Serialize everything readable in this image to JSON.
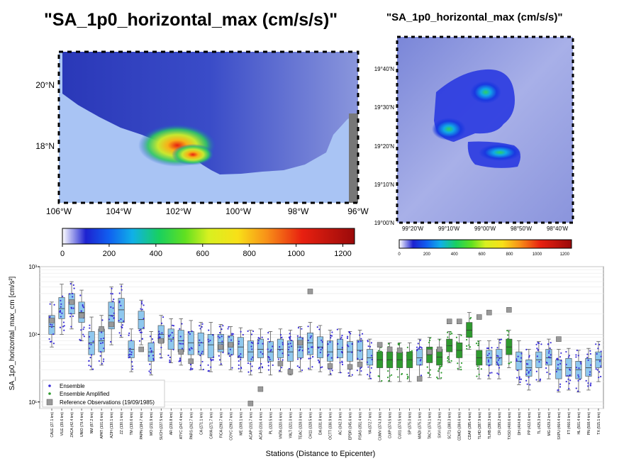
{
  "left_map": {
    "title": "\"SA_1p0_horizontal_max (cm/s/s)\"",
    "lat_labels": [
      "20°N",
      "18°N"
    ],
    "lon_labels": [
      "106°W",
      "104°W",
      "102°W",
      "100°W",
      "98°W",
      "96°W"
    ],
    "colorbar_ticks": [
      "0",
      "200",
      "400",
      "600",
      "800",
      "1000",
      "1200"
    ],
    "colorbar_range": [
      0,
      1250
    ]
  },
  "right_map": {
    "title": "\"SA_1p0_horizontal_max (cm/s/s)\"",
    "lat_labels": [
      "19°40'N",
      "19°30'N",
      "19°20'N",
      "19°10'N",
      "19°00'N"
    ],
    "lon_labels": [
      "99°20'W",
      "99°10'W",
      "99°00'W",
      "98°50'W",
      "98°40'W"
    ],
    "colorbar_ticks": [
      "0",
      "200",
      "400",
      "600",
      "800",
      "1000",
      "1200"
    ],
    "colorbar_range": [
      0,
      1250
    ]
  },
  "colors": {
    "ensemble": "#3b2fd6",
    "ensemble_amplified": "#2e9a2e",
    "box_blue": "#8fc8ee",
    "box_green": "#2f9a2f",
    "reference": "#999999",
    "ocean": "#a9c4f4"
  },
  "chart_data": {
    "type": "box",
    "ylabel": "SA_1p0_horizontal_max_cm [cm/s²]",
    "xlabel": "Stations (Distance to Epicenter)",
    "yscale": "log",
    "ylim": [
      8,
      1000
    ],
    "y_tick_labels": [
      "10¹",
      "10²",
      "10³"
    ],
    "grid": true,
    "legend_position": "lower-left",
    "legend": [
      "Ensemble",
      "Ensemble Amplified",
      "Reference Observations (19/09/1985)"
    ],
    "stations": [
      {
        "label": "CALE (27.1 km)",
        "group": "ensemble",
        "q1": 100,
        "median": 130,
        "q3": 190,
        "wlo": 65,
        "whi": 300,
        "ref": 160
      },
      {
        "label": "VILE (39.6 km)",
        "group": "ensemble",
        "q1": 170,
        "median": 240,
        "q3": 350,
        "wlo": 100,
        "whi": 550,
        "ref": null
      },
      {
        "label": "ZACA (42.4 km)",
        "group": "ensemble",
        "q1": 200,
        "median": 290,
        "q3": 400,
        "wlo": 120,
        "whi": 600,
        "ref": 300
      },
      {
        "label": "UNIO (79.4 km)",
        "group": "ensemble",
        "q1": 150,
        "median": 210,
        "q3": 300,
        "wlo": 80,
        "whi": 450,
        "ref": 190
      },
      {
        "label": "NM (87.2 km)",
        "group": "ensemble",
        "q1": 50,
        "median": 75,
        "q3": 110,
        "wlo": 30,
        "whi": 180,
        "ref": null
      },
      {
        "label": "APAT (101.6 km)",
        "group": "ensemble",
        "q1": 55,
        "median": 80,
        "q3": 120,
        "wlo": 35,
        "whi": 190,
        "ref": 120
      },
      {
        "label": "AZIH (130.1 km)",
        "group": "ensemble",
        "q1": 120,
        "median": 190,
        "q3": 300,
        "wlo": 70,
        "whi": 500,
        "ref": 140
      },
      {
        "label": "ZZ (130.1 km)",
        "group": "ensemble",
        "q1": 150,
        "median": 230,
        "q3": 340,
        "wlo": 90,
        "whi": 550,
        "ref": null
      },
      {
        "label": "TM (130.6 km)",
        "group": "ensemble",
        "q1": 45,
        "median": 60,
        "q3": 80,
        "wlo": 28,
        "whi": 120,
        "ref": null
      },
      {
        "label": "PAPN (184.7 km)",
        "group": "ensemble",
        "q1": 120,
        "median": 165,
        "q3": 220,
        "wlo": 70,
        "whi": 320,
        "ref": 60
      },
      {
        "label": "MO (211.9 km)",
        "group": "ensemble",
        "q1": 40,
        "median": 55,
        "q3": 75,
        "wlo": 25,
        "whi": 110,
        "ref": null
      },
      {
        "label": "SUCH (227.5 km)",
        "group": "ensemble",
        "q1": 75,
        "median": 100,
        "q3": 135,
        "wlo": 45,
        "whi": 190,
        "ref": 80
      },
      {
        "label": "AR (230.8 km)",
        "group": "ensemble",
        "q1": 60,
        "median": 85,
        "q3": 120,
        "wlo": 38,
        "whi": 170,
        "ref": null
      },
      {
        "label": "ATYC (247.4 km)",
        "group": "ensemble",
        "q1": 55,
        "median": 80,
        "q3": 115,
        "wlo": 35,
        "whi": 170,
        "ref": 55
      },
      {
        "label": "PARS (262.7 km)",
        "group": "ensemble",
        "q1": 50,
        "median": 75,
        "q3": 110,
        "wlo": 30,
        "whi": 160,
        "ref": 40
      },
      {
        "label": "CA (271.1 km)",
        "group": "ensemble",
        "q1": 50,
        "median": 75,
        "q3": 105,
        "wlo": 30,
        "whi": 150,
        "ref": null
      },
      {
        "label": "CAYA (271.7 km)",
        "group": "ensemble",
        "q1": 45,
        "median": 70,
        "q3": 100,
        "wlo": 28,
        "whi": 150,
        "ref": null
      },
      {
        "label": "FICA (290.7 km)",
        "group": "ensemble",
        "q1": 55,
        "median": 75,
        "q3": 100,
        "wlo": 35,
        "whi": 140,
        "ref": 65
      },
      {
        "label": "COYC (290.7 km)",
        "group": "ensemble",
        "q1": 50,
        "median": 70,
        "q3": 95,
        "wlo": 30,
        "whi": 130,
        "ref": 70
      },
      {
        "label": "ME (309.1 km)",
        "group": "ensemble",
        "q1": 45,
        "median": 65,
        "q3": 90,
        "wlo": 28,
        "whi": 125,
        "ref": null
      },
      {
        "label": "ACAP (315.7 km)",
        "group": "ensemble",
        "q1": 40,
        "median": 55,
        "q3": 80,
        "wlo": 25,
        "whi": 115,
        "ref": 9.5
      },
      {
        "label": "ACAS (316.4 km)",
        "group": "ensemble",
        "q1": 45,
        "median": 60,
        "q3": 85,
        "wlo": 27,
        "whi": 120,
        "ref": 15.5
      },
      {
        "label": "PL (320.5 km)",
        "group": "ensemble",
        "q1": 40,
        "median": 55,
        "q3": 78,
        "wlo": 25,
        "whi": 110,
        "ref": null
      },
      {
        "label": "VNTA (320.6 km)",
        "group": "ensemble",
        "q1": 45,
        "median": 60,
        "q3": 85,
        "wlo": 28,
        "whi": 120,
        "ref": 37
      },
      {
        "label": "YALT (321.0 km)",
        "group": "ensemble",
        "q1": 40,
        "median": 55,
        "q3": 80,
        "wlo": 25,
        "whi": 115,
        "ref": 28
      },
      {
        "label": "TEAC (328.0 km)",
        "group": "ensemble",
        "q1": 45,
        "median": 65,
        "q3": 90,
        "wlo": 28,
        "whi": 130,
        "ref": 75
      },
      {
        "label": "CH11 (328.5 km)",
        "group": "ensemble",
        "q1": 50,
        "median": 75,
        "q3": 105,
        "wlo": 30,
        "whi": 150,
        "ref": 430
      },
      {
        "label": "DA (331.8 km)",
        "group": "ensemble",
        "q1": 45,
        "median": 65,
        "q3": 92,
        "wlo": 28,
        "whi": 135,
        "ref": null
      },
      {
        "label": "OCTT (336.9 km)",
        "group": "ensemble",
        "q1": 40,
        "median": 55,
        "q3": 80,
        "wlo": 25,
        "whi": 115,
        "ref": 34
      },
      {
        "label": "AC (342.3 km)",
        "group": "ensemble",
        "q1": 45,
        "median": 60,
        "q3": 85,
        "wlo": 27,
        "whi": 120,
        "ref": null
      },
      {
        "label": "EPDR (345.6 km)",
        "group": "ensemble",
        "q1": 40,
        "median": 55,
        "q3": 78,
        "wlo": 24,
        "whi": 110,
        "ref": 33
      },
      {
        "label": "RSAS (351.4 km)",
        "group": "ensemble",
        "q1": 42,
        "median": 58,
        "q3": 82,
        "wlo": 25,
        "whi": 115,
        "ref": 36
      },
      {
        "label": "YA (372.7 km)",
        "group": "ensemble",
        "q1": 35,
        "median": 45,
        "q3": 60,
        "wlo": 22,
        "whi": 85,
        "ref": null
      },
      {
        "label": "CUMV (374.3 km)",
        "group": "amplified",
        "q1": 32,
        "median": 42,
        "q3": 55,
        "wlo": 20,
        "whi": 75,
        "ref": 70
      },
      {
        "label": "CUIP (374.5 km)",
        "group": "amplified",
        "q1": 32,
        "median": 42,
        "q3": 55,
        "wlo": 20,
        "whi": 75,
        "ref": 60
      },
      {
        "label": "CU01 (374.5 km)",
        "group": "amplified",
        "q1": 32,
        "median": 42,
        "q3": 55,
        "wlo": 20,
        "whi": 75,
        "ref": 58
      },
      {
        "label": "SP (375.0 km)",
        "group": "amplified",
        "q1": 32,
        "median": 42,
        "q3": 55,
        "wlo": 20,
        "whi": 75,
        "ref": null
      },
      {
        "label": "MADI (375.1 km)",
        "group": "ensemble",
        "q1": 35,
        "median": 45,
        "q3": 60,
        "wlo": 22,
        "whi": 85,
        "ref": 22
      },
      {
        "label": "TACY (376.1 km)",
        "group": "amplified",
        "q1": 38,
        "median": 50,
        "q3": 65,
        "wlo": 23,
        "whi": 90,
        "ref": 55
      },
      {
        "label": "SXVI (376.2 km)",
        "group": "amplified",
        "q1": 35,
        "median": 46,
        "q3": 60,
        "wlo": 22,
        "whi": 85,
        "ref": 60
      },
      {
        "label": "SCT1 (380.3 km)",
        "group": "amplified",
        "q1": 55,
        "median": 68,
        "q3": 85,
        "wlo": 38,
        "whi": 110,
        "ref": 155
      },
      {
        "label": "CDMD (384.6 km)",
        "group": "amplified",
        "q1": 45,
        "median": 58,
        "q3": 75,
        "wlo": 30,
        "whi": 100,
        "ref": 155
      },
      {
        "label": "CDAF (385.4 km)",
        "group": "amplified",
        "q1": 90,
        "median": 115,
        "q3": 150,
        "wlo": 60,
        "whi": 210,
        "ref": null
      },
      {
        "label": "TLHD (387.9 km)",
        "group": "amplified",
        "q1": 35,
        "median": 45,
        "q3": 58,
        "wlo": 22,
        "whi": 80,
        "ref": 180
      },
      {
        "label": "TLHB (390.3 km)",
        "group": "ensemble",
        "q1": 35,
        "median": 45,
        "q3": 58,
        "wlo": 22,
        "whi": 80,
        "ref": 210
      },
      {
        "label": "CR (395.2 km)",
        "group": "ensemble",
        "q1": 35,
        "median": 45,
        "q3": 60,
        "wlo": 22,
        "whi": 85,
        "ref": null
      },
      {
        "label": "TXSO (400.6 km)",
        "group": "amplified",
        "q1": 50,
        "median": 65,
        "q3": 85,
        "wlo": 32,
        "whi": 115,
        "ref": 230
      },
      {
        "label": "DH (404.8 km)",
        "group": "ensemble",
        "q1": 30,
        "median": 40,
        "q3": 55,
        "wlo": 18,
        "whi": 80,
        "ref": null
      },
      {
        "label": "PP (422.6 km)",
        "group": "ensemble",
        "q1": 24,
        "median": 32,
        "q3": 42,
        "wlo": 15,
        "whi": 60,
        "ref": null
      },
      {
        "label": "TL (425.3 km)",
        "group": "ensemble",
        "q1": 32,
        "median": 42,
        "q3": 55,
        "wlo": 20,
        "whi": 78,
        "ref": null
      },
      {
        "label": "MG (429.2 km)",
        "group": "ensemble",
        "q1": 35,
        "median": 45,
        "q3": 60,
        "wlo": 22,
        "whi": 85,
        "ref": null
      },
      {
        "label": "SXPU (464.4 km)",
        "group": "ensemble",
        "q1": 22,
        "median": 30,
        "q3": 42,
        "wlo": 14,
        "whi": 60,
        "ref": 85
      },
      {
        "label": "FT (466.0 km)",
        "group": "ensemble",
        "q1": 24,
        "median": 32,
        "q3": 44,
        "wlo": 15,
        "whi": 62,
        "ref": null
      },
      {
        "label": "HL (501.4 km)",
        "group": "ensemble",
        "q1": 22,
        "median": 30,
        "q3": 40,
        "wlo": 14,
        "whi": 58,
        "ref": null
      },
      {
        "label": "PN (508.4 km)",
        "group": "ensemble",
        "q1": 24,
        "median": 32,
        "q3": 44,
        "wlo": 15,
        "whi": 62,
        "ref": null
      },
      {
        "label": "TX (515.1 km)",
        "group": "ensemble",
        "q1": 32,
        "median": 42,
        "q3": 55,
        "wlo": 20,
        "whi": 78,
        "ref": null
      }
    ]
  }
}
